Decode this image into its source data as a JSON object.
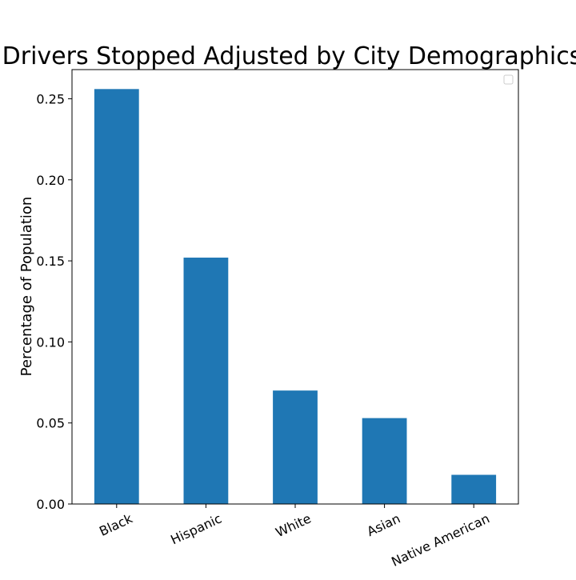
{
  "chart_data": {
    "type": "bar",
    "title": "Drivers Stopped Adjusted by City Demographics",
    "xlabel": "",
    "ylabel": "Percentage of Population",
    "categories": [
      "Black",
      "Hispanic",
      "White",
      "Asian",
      "Native American"
    ],
    "values": [
      0.256,
      0.152,
      0.07,
      0.053,
      0.018
    ],
    "ylim": [
      0,
      0.268
    ],
    "yticks": [
      "0.00",
      "0.05",
      "0.10",
      "0.15",
      "0.20",
      "0.25"
    ],
    "ytick_values": [
      0,
      0.05,
      0.1,
      0.15,
      0.2,
      0.25
    ],
    "bar_color": "#1f77b4",
    "legend": {
      "placement": "top-right",
      "entries": []
    },
    "grid": false
  }
}
